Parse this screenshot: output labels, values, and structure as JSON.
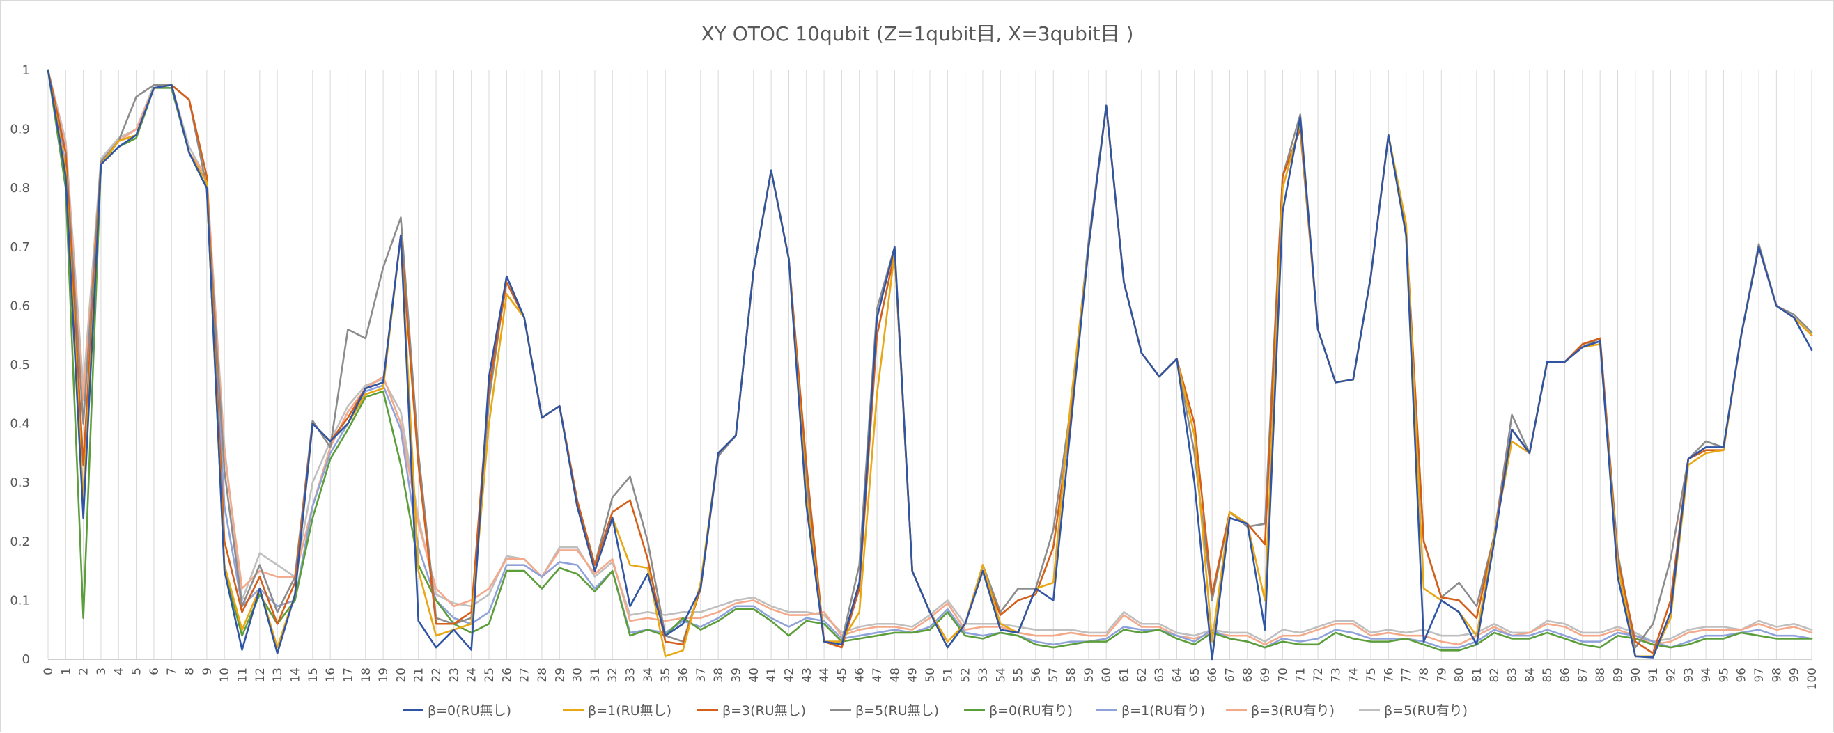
{
  "chart_data": {
    "type": "line",
    "title": "XY OTOC 10qubit (Z=1qubit目, X=3qubit目 )",
    "xlabel": "",
    "ylabel": "",
    "ylim": [
      0,
      1
    ],
    "y_ticks": [
      "0",
      "0.1",
      "0.2",
      "0.3",
      "0.4",
      "0.5",
      "0.6",
      "0.7",
      "0.8",
      "0.9",
      "1"
    ],
    "y_tick_values": [
      0,
      0.1,
      0.2,
      0.3,
      0.4,
      0.5,
      0.6,
      0.7,
      0.8,
      0.9,
      1
    ],
    "x": [
      0,
      1,
      2,
      3,
      4,
      5,
      6,
      7,
      8,
      9,
      10,
      11,
      12,
      13,
      14,
      15,
      16,
      17,
      18,
      19,
      20,
      21,
      22,
      23,
      24,
      25,
      26,
      27,
      28,
      29,
      30,
      31,
      32,
      33,
      34,
      35,
      36,
      37,
      38,
      39,
      40,
      41,
      42,
      43,
      44,
      45,
      46,
      47,
      48,
      49,
      50,
      51,
      52,
      53,
      54,
      55,
      56,
      57,
      58,
      59,
      60,
      61,
      62,
      63,
      64,
      65,
      66,
      67,
      68,
      69,
      70,
      71,
      72,
      73,
      74,
      75,
      76,
      77,
      78,
      79,
      80,
      81,
      82,
      83,
      84,
      85,
      86,
      87,
      88,
      89,
      90,
      91,
      92,
      93,
      94,
      95,
      96,
      97,
      98,
      99,
      100
    ],
    "grid": "vertical",
    "legend_position": "bottom",
    "series": [
      {
        "name": "β=0(RU無し)",
        "color": "#2F55A4",
        "values": [
          1.0,
          0.82,
          0.24,
          0.84,
          0.87,
          0.89,
          0.97,
          0.975,
          0.86,
          0.8,
          0.15,
          0.016,
          0.12,
          0.01,
          0.11,
          0.4,
          0.37,
          0.4,
          0.46,
          0.47,
          0.72,
          0.065,
          0.02,
          0.05,
          0.016,
          0.48,
          0.65,
          0.58,
          0.41,
          0.43,
          0.26,
          0.15,
          0.24,
          0.09,
          0.145,
          0.04,
          0.06,
          0.12,
          0.35,
          0.38,
          0.66,
          0.83,
          0.68,
          0.26,
          0.03,
          0.025,
          0.13,
          0.58,
          0.7,
          0.15,
          0.08,
          0.02,
          0.06,
          0.15,
          0.05,
          0.045,
          0.12,
          0.1,
          0.4,
          0.7,
          0.94,
          0.64,
          0.52,
          0.48,
          0.51,
          0.3,
          0.0,
          0.24,
          0.23,
          0.05,
          0.76,
          0.92,
          0.56,
          0.47,
          0.475,
          0.65,
          0.89,
          0.72,
          0.03,
          0.1,
          0.08,
          0.025,
          0.2,
          0.39,
          0.35,
          0.505,
          0.505,
          0.53,
          0.54,
          0.14,
          0.005,
          0.003,
          0.08,
          0.34,
          0.36,
          0.36,
          0.55,
          0.7,
          0.6,
          0.58,
          0.525
        ]
      },
      {
        "name": "β=1(RU無し)",
        "color": "#E8A713",
        "values": [
          1.0,
          0.83,
          0.27,
          0.84,
          0.88,
          0.89,
          0.97,
          0.975,
          0.86,
          0.81,
          0.16,
          0.05,
          0.12,
          0.02,
          0.11,
          0.4,
          0.37,
          0.4,
          0.45,
          0.46,
          0.72,
          0.15,
          0.04,
          0.05,
          0.06,
          0.4,
          0.62,
          0.58,
          0.41,
          0.43,
          0.26,
          0.15,
          0.24,
          0.16,
          0.155,
          0.005,
          0.015,
          0.13,
          0.35,
          0.38,
          0.66,
          0.83,
          0.68,
          0.28,
          0.03,
          0.03,
          0.08,
          0.45,
          0.69,
          0.15,
          0.08,
          0.03,
          0.06,
          0.16,
          0.06,
          0.045,
          0.12,
          0.13,
          0.44,
          0.7,
          0.94,
          0.64,
          0.52,
          0.48,
          0.51,
          0.38,
          0.03,
          0.25,
          0.23,
          0.1,
          0.8,
          0.91,
          0.56,
          0.47,
          0.475,
          0.65,
          0.89,
          0.74,
          0.12,
          0.1,
          0.08,
          0.04,
          0.21,
          0.37,
          0.35,
          0.505,
          0.505,
          0.53,
          0.535,
          0.16,
          0.005,
          0.005,
          0.07,
          0.33,
          0.35,
          0.355,
          0.55,
          0.7,
          0.6,
          0.58,
          0.55
        ]
      },
      {
        "name": "β=3(RU無し)",
        "color": "#D35F1A",
        "values": [
          1.0,
          0.86,
          0.33,
          0.84,
          0.88,
          0.89,
          0.97,
          0.975,
          0.95,
          0.82,
          0.2,
          0.08,
          0.14,
          0.06,
          0.13,
          0.4,
          0.37,
          0.41,
          0.46,
          0.47,
          0.72,
          0.33,
          0.06,
          0.06,
          0.08,
          0.46,
          0.64,
          0.58,
          0.41,
          0.43,
          0.27,
          0.16,
          0.25,
          0.27,
          0.17,
          0.03,
          0.025,
          0.12,
          0.35,
          0.38,
          0.66,
          0.83,
          0.68,
          0.33,
          0.03,
          0.02,
          0.12,
          0.55,
          0.69,
          0.15,
          0.08,
          0.03,
          0.06,
          0.15,
          0.075,
          0.1,
          0.11,
          0.19,
          0.41,
          0.7,
          0.94,
          0.64,
          0.52,
          0.48,
          0.51,
          0.4,
          0.11,
          0.25,
          0.23,
          0.195,
          0.82,
          0.9,
          0.56,
          0.47,
          0.475,
          0.65,
          0.89,
          0.73,
          0.2,
          0.105,
          0.1,
          0.07,
          0.21,
          0.39,
          0.35,
          0.505,
          0.505,
          0.535,
          0.545,
          0.17,
          0.03,
          0.01,
          0.1,
          0.34,
          0.355,
          0.355,
          0.55,
          0.7,
          0.6,
          0.58,
          0.55
        ]
      },
      {
        "name": "β=5(RU無し)",
        "color": "#8C8C8C",
        "values": [
          1.0,
          0.86,
          0.4,
          0.845,
          0.88,
          0.955,
          0.975,
          0.975,
          0.95,
          0.8,
          0.32,
          0.09,
          0.16,
          0.08,
          0.14,
          0.405,
          0.36,
          0.56,
          0.545,
          0.665,
          0.75,
          0.35,
          0.07,
          0.06,
          0.07,
          0.44,
          0.65,
          0.58,
          0.41,
          0.43,
          0.27,
          0.16,
          0.275,
          0.31,
          0.2,
          0.04,
          0.03,
          0.12,
          0.345,
          0.38,
          0.66,
          0.83,
          0.68,
          0.3,
          0.03,
          0.03,
          0.16,
          0.595,
          0.7,
          0.15,
          0.08,
          0.02,
          0.06,
          0.16,
          0.08,
          0.12,
          0.12,
          0.22,
          0.43,
          0.71,
          0.94,
          0.64,
          0.52,
          0.48,
          0.51,
          0.35,
          0.1,
          0.25,
          0.225,
          0.23,
          0.82,
          0.925,
          0.56,
          0.47,
          0.475,
          0.65,
          0.89,
          0.72,
          0.2,
          0.105,
          0.13,
          0.09,
          0.21,
          0.415,
          0.35,
          0.505,
          0.505,
          0.53,
          0.545,
          0.18,
          0.02,
          0.06,
          0.17,
          0.34,
          0.37,
          0.36,
          0.55,
          0.705,
          0.6,
          0.585,
          0.555
        ]
      },
      {
        "name": "β=0(RU有り)",
        "color": "#5C9E3A",
        "values": [
          1.0,
          0.8,
          0.07,
          0.84,
          0.87,
          0.885,
          0.97,
          0.97,
          0.86,
          0.8,
          0.15,
          0.04,
          0.11,
          0.06,
          0.1,
          0.24,
          0.34,
          0.39,
          0.445,
          0.455,
          0.33,
          0.16,
          0.1,
          0.06,
          0.045,
          0.06,
          0.15,
          0.15,
          0.12,
          0.155,
          0.145,
          0.115,
          0.15,
          0.04,
          0.05,
          0.04,
          0.07,
          0.05,
          0.065,
          0.085,
          0.085,
          0.065,
          0.04,
          0.065,
          0.06,
          0.03,
          0.035,
          0.04,
          0.045,
          0.045,
          0.05,
          0.08,
          0.04,
          0.035,
          0.045,
          0.04,
          0.025,
          0.02,
          0.025,
          0.03,
          0.03,
          0.05,
          0.045,
          0.05,
          0.035,
          0.025,
          0.045,
          0.035,
          0.03,
          0.02,
          0.03,
          0.025,
          0.025,
          0.045,
          0.035,
          0.03,
          0.03,
          0.035,
          0.025,
          0.015,
          0.015,
          0.025,
          0.045,
          0.035,
          0.035,
          0.045,
          0.035,
          0.025,
          0.02,
          0.04,
          0.035,
          0.025,
          0.02,
          0.025,
          0.035,
          0.035,
          0.045,
          0.04,
          0.035,
          0.035,
          0.035
        ]
      },
      {
        "name": "β=1(RU有り)",
        "color": "#8FA3DA",
        "values": [
          1.0,
          0.84,
          0.27,
          0.84,
          0.88,
          0.89,
          0.97,
          0.97,
          0.86,
          0.8,
          0.26,
          0.09,
          0.12,
          0.09,
          0.1,
          0.26,
          0.35,
          0.4,
          0.455,
          0.465,
          0.39,
          0.19,
          0.1,
          0.07,
          0.06,
          0.08,
          0.16,
          0.16,
          0.14,
          0.165,
          0.16,
          0.12,
          0.15,
          0.045,
          0.05,
          0.045,
          0.065,
          0.055,
          0.07,
          0.09,
          0.09,
          0.07,
          0.055,
          0.07,
          0.065,
          0.035,
          0.04,
          0.045,
          0.05,
          0.045,
          0.055,
          0.085,
          0.045,
          0.04,
          0.045,
          0.04,
          0.03,
          0.025,
          0.03,
          0.03,
          0.035,
          0.055,
          0.05,
          0.05,
          0.04,
          0.03,
          0.05,
          0.035,
          0.03,
          0.02,
          0.035,
          0.03,
          0.035,
          0.05,
          0.045,
          0.035,
          0.035,
          0.035,
          0.03,
          0.02,
          0.02,
          0.03,
          0.05,
          0.04,
          0.04,
          0.05,
          0.04,
          0.03,
          0.03,
          0.045,
          0.04,
          0.03,
          0.02,
          0.03,
          0.04,
          0.04,
          0.045,
          0.05,
          0.04,
          0.04,
          0.035
        ]
      },
      {
        "name": "β=3(RU有り)",
        "color": "#F4A98A",
        "values": [
          1.0,
          0.87,
          0.44,
          0.84,
          0.88,
          0.9,
          0.97,
          0.975,
          0.86,
          0.82,
          0.35,
          0.12,
          0.15,
          0.14,
          0.14,
          0.26,
          0.36,
          0.42,
          0.46,
          0.48,
          0.4,
          0.23,
          0.12,
          0.09,
          0.1,
          0.12,
          0.17,
          0.17,
          0.14,
          0.185,
          0.185,
          0.145,
          0.17,
          0.065,
          0.07,
          0.065,
          0.07,
          0.07,
          0.08,
          0.095,
          0.1,
          0.085,
          0.075,
          0.075,
          0.08,
          0.04,
          0.05,
          0.055,
          0.055,
          0.05,
          0.07,
          0.095,
          0.05,
          0.055,
          0.055,
          0.045,
          0.04,
          0.04,
          0.045,
          0.04,
          0.04,
          0.075,
          0.055,
          0.055,
          0.04,
          0.035,
          0.045,
          0.04,
          0.04,
          0.025,
          0.04,
          0.04,
          0.05,
          0.06,
          0.06,
          0.04,
          0.045,
          0.04,
          0.04,
          0.03,
          0.025,
          0.04,
          0.055,
          0.04,
          0.045,
          0.06,
          0.055,
          0.04,
          0.04,
          0.05,
          0.04,
          0.025,
          0.03,
          0.045,
          0.05,
          0.05,
          0.05,
          0.06,
          0.05,
          0.055,
          0.045
        ]
      },
      {
        "name": "β=5(RU有り)",
        "color": "#BFBFBF",
        "values": [
          1.0,
          0.88,
          0.46,
          0.85,
          0.885,
          0.9,
          0.975,
          0.975,
          0.87,
          0.815,
          0.36,
          0.1,
          0.18,
          0.16,
          0.14,
          0.3,
          0.37,
          0.43,
          0.465,
          0.475,
          0.42,
          0.24,
          0.11,
          0.095,
          0.09,
          0.11,
          0.175,
          0.17,
          0.14,
          0.19,
          0.19,
          0.14,
          0.165,
          0.075,
          0.08,
          0.075,
          0.08,
          0.08,
          0.09,
          0.1,
          0.105,
          0.09,
          0.08,
          0.08,
          0.075,
          0.045,
          0.055,
          0.06,
          0.06,
          0.055,
          0.075,
          0.1,
          0.06,
          0.06,
          0.06,
          0.055,
          0.05,
          0.05,
          0.05,
          0.045,
          0.045,
          0.08,
          0.06,
          0.06,
          0.045,
          0.04,
          0.05,
          0.045,
          0.045,
          0.03,
          0.05,
          0.045,
          0.055,
          0.065,
          0.065,
          0.045,
          0.05,
          0.045,
          0.05,
          0.04,
          0.04,
          0.045,
          0.06,
          0.045,
          0.045,
          0.065,
          0.06,
          0.045,
          0.045,
          0.055,
          0.045,
          0.03,
          0.035,
          0.05,
          0.055,
          0.055,
          0.05,
          0.065,
          0.055,
          0.06,
          0.05
        ]
      }
    ]
  }
}
